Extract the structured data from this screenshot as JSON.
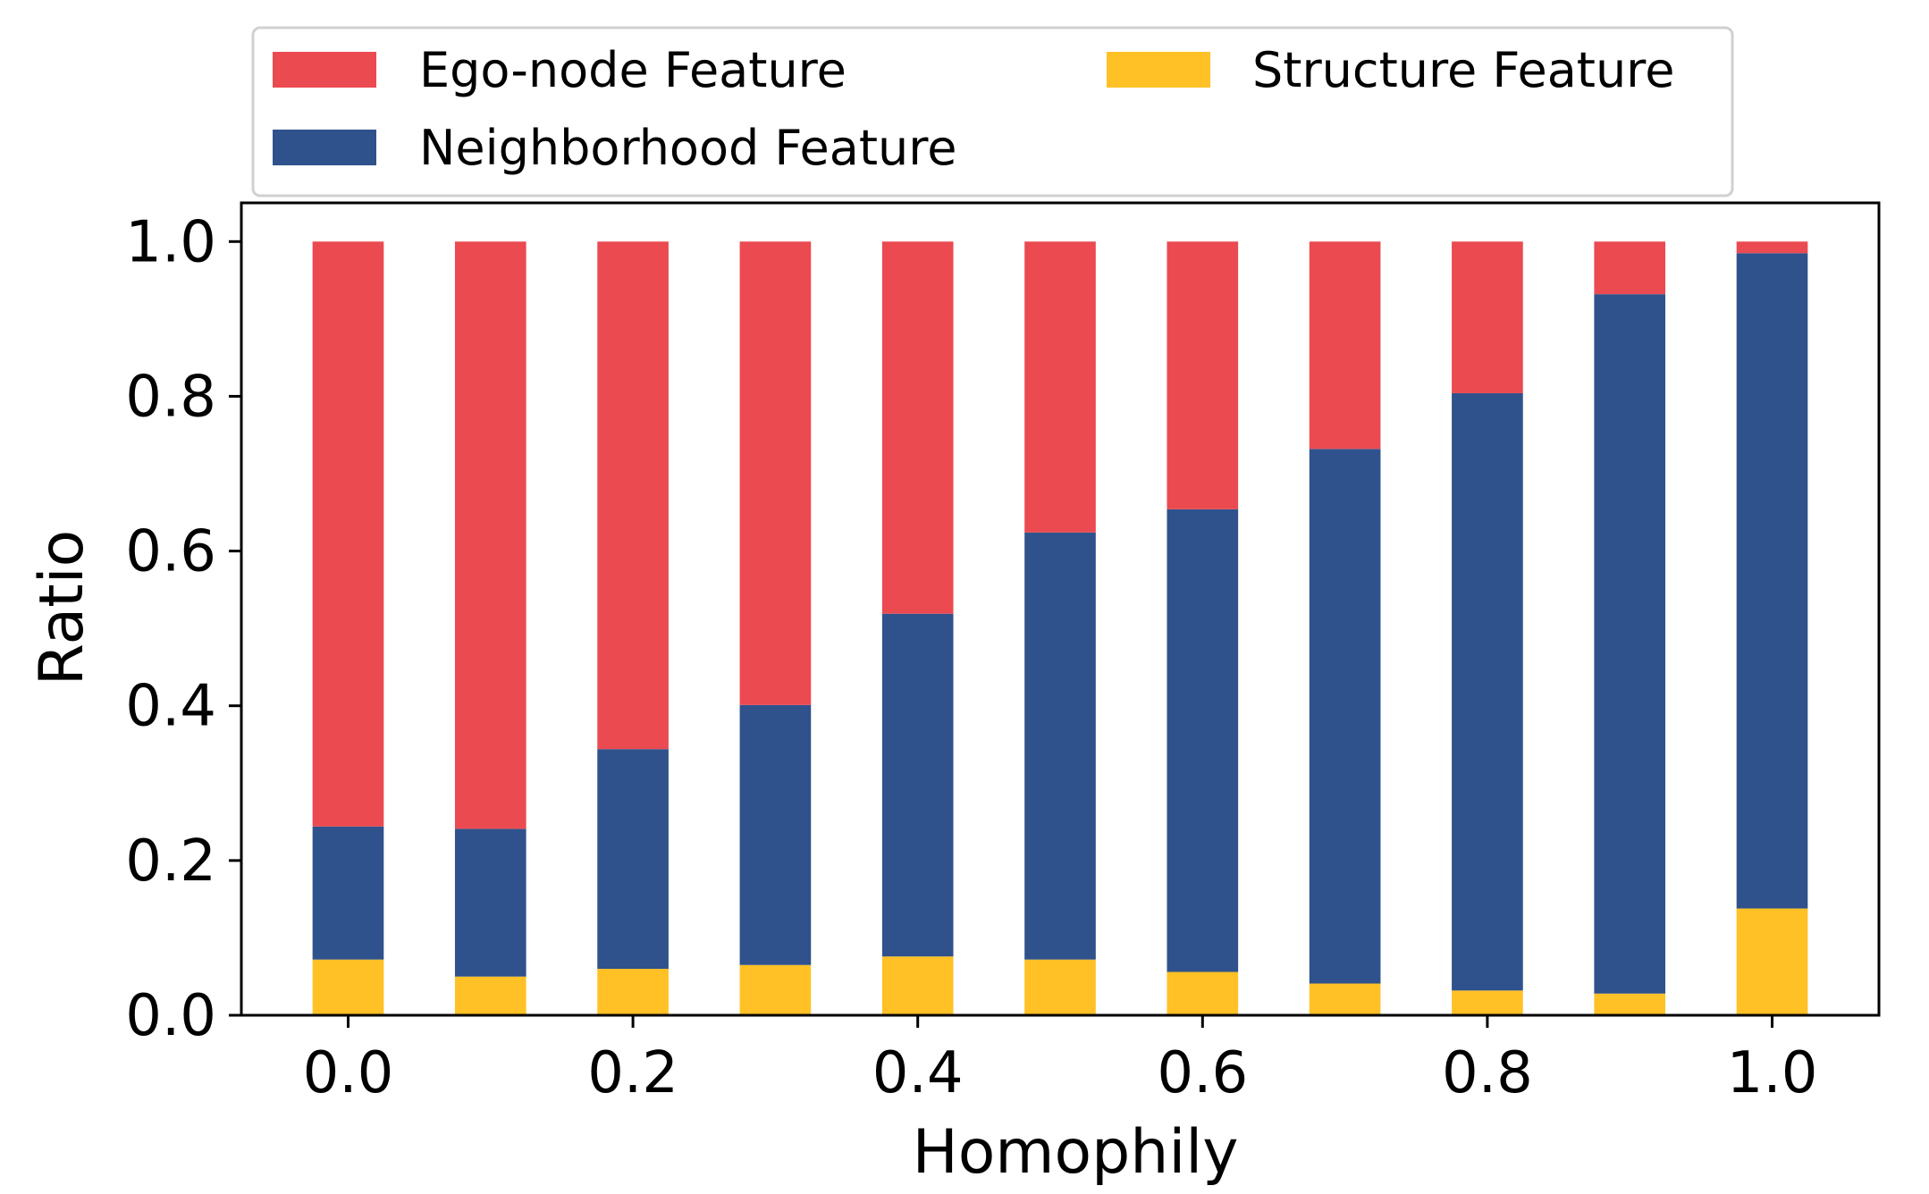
{
  "chart_data": {
    "type": "bar",
    "stacked": true,
    "title": "",
    "xlabel": "Homophily",
    "ylabel": "Ratio",
    "x": [
      0.0,
      0.1,
      0.2,
      0.3,
      0.4,
      0.5,
      0.6,
      0.7,
      0.8,
      0.9,
      1.0
    ],
    "xticks": [
      0.0,
      0.2,
      0.4,
      0.6,
      0.8,
      1.0
    ],
    "xtick_labels": [
      "0.0",
      "0.2",
      "0.4",
      "0.6",
      "0.8",
      "1.0"
    ],
    "yticks": [
      0.0,
      0.2,
      0.4,
      0.6,
      0.8,
      1.0
    ],
    "ytick_labels": [
      "0.0",
      "0.2",
      "0.4",
      "0.6",
      "0.8",
      "1.0"
    ],
    "xlim": [
      -0.075,
      1.075
    ],
    "ylim": [
      0.0,
      1.05
    ],
    "grid": false,
    "legend_position": "top, above plot",
    "series": [
      {
        "name": "Structure Feature",
        "color": "#FFC125",
        "values": [
          0.072,
          0.05,
          0.06,
          0.065,
          0.076,
          0.072,
          0.056,
          0.041,
          0.032,
          0.028,
          0.138
        ]
      },
      {
        "name": "Neighborhood Feature",
        "color": "#30528C",
        "values": [
          0.172,
          0.191,
          0.284,
          0.336,
          0.443,
          0.552,
          0.598,
          0.691,
          0.772,
          0.904,
          0.847
        ]
      },
      {
        "name": "Ego-node Feature",
        "color": "#EB4A51",
        "values": [
          0.756,
          0.759,
          0.656,
          0.599,
          0.481,
          0.376,
          0.346,
          0.268,
          0.196,
          0.068,
          0.015
        ]
      }
    ]
  },
  "legend": {
    "items": [
      {
        "label": "Ego-node Feature",
        "color": "#EB4A51"
      },
      {
        "label": "Structure Feature",
        "color": "#FFC125"
      },
      {
        "label": "Neighborhood Feature",
        "color": "#30528C"
      }
    ]
  }
}
